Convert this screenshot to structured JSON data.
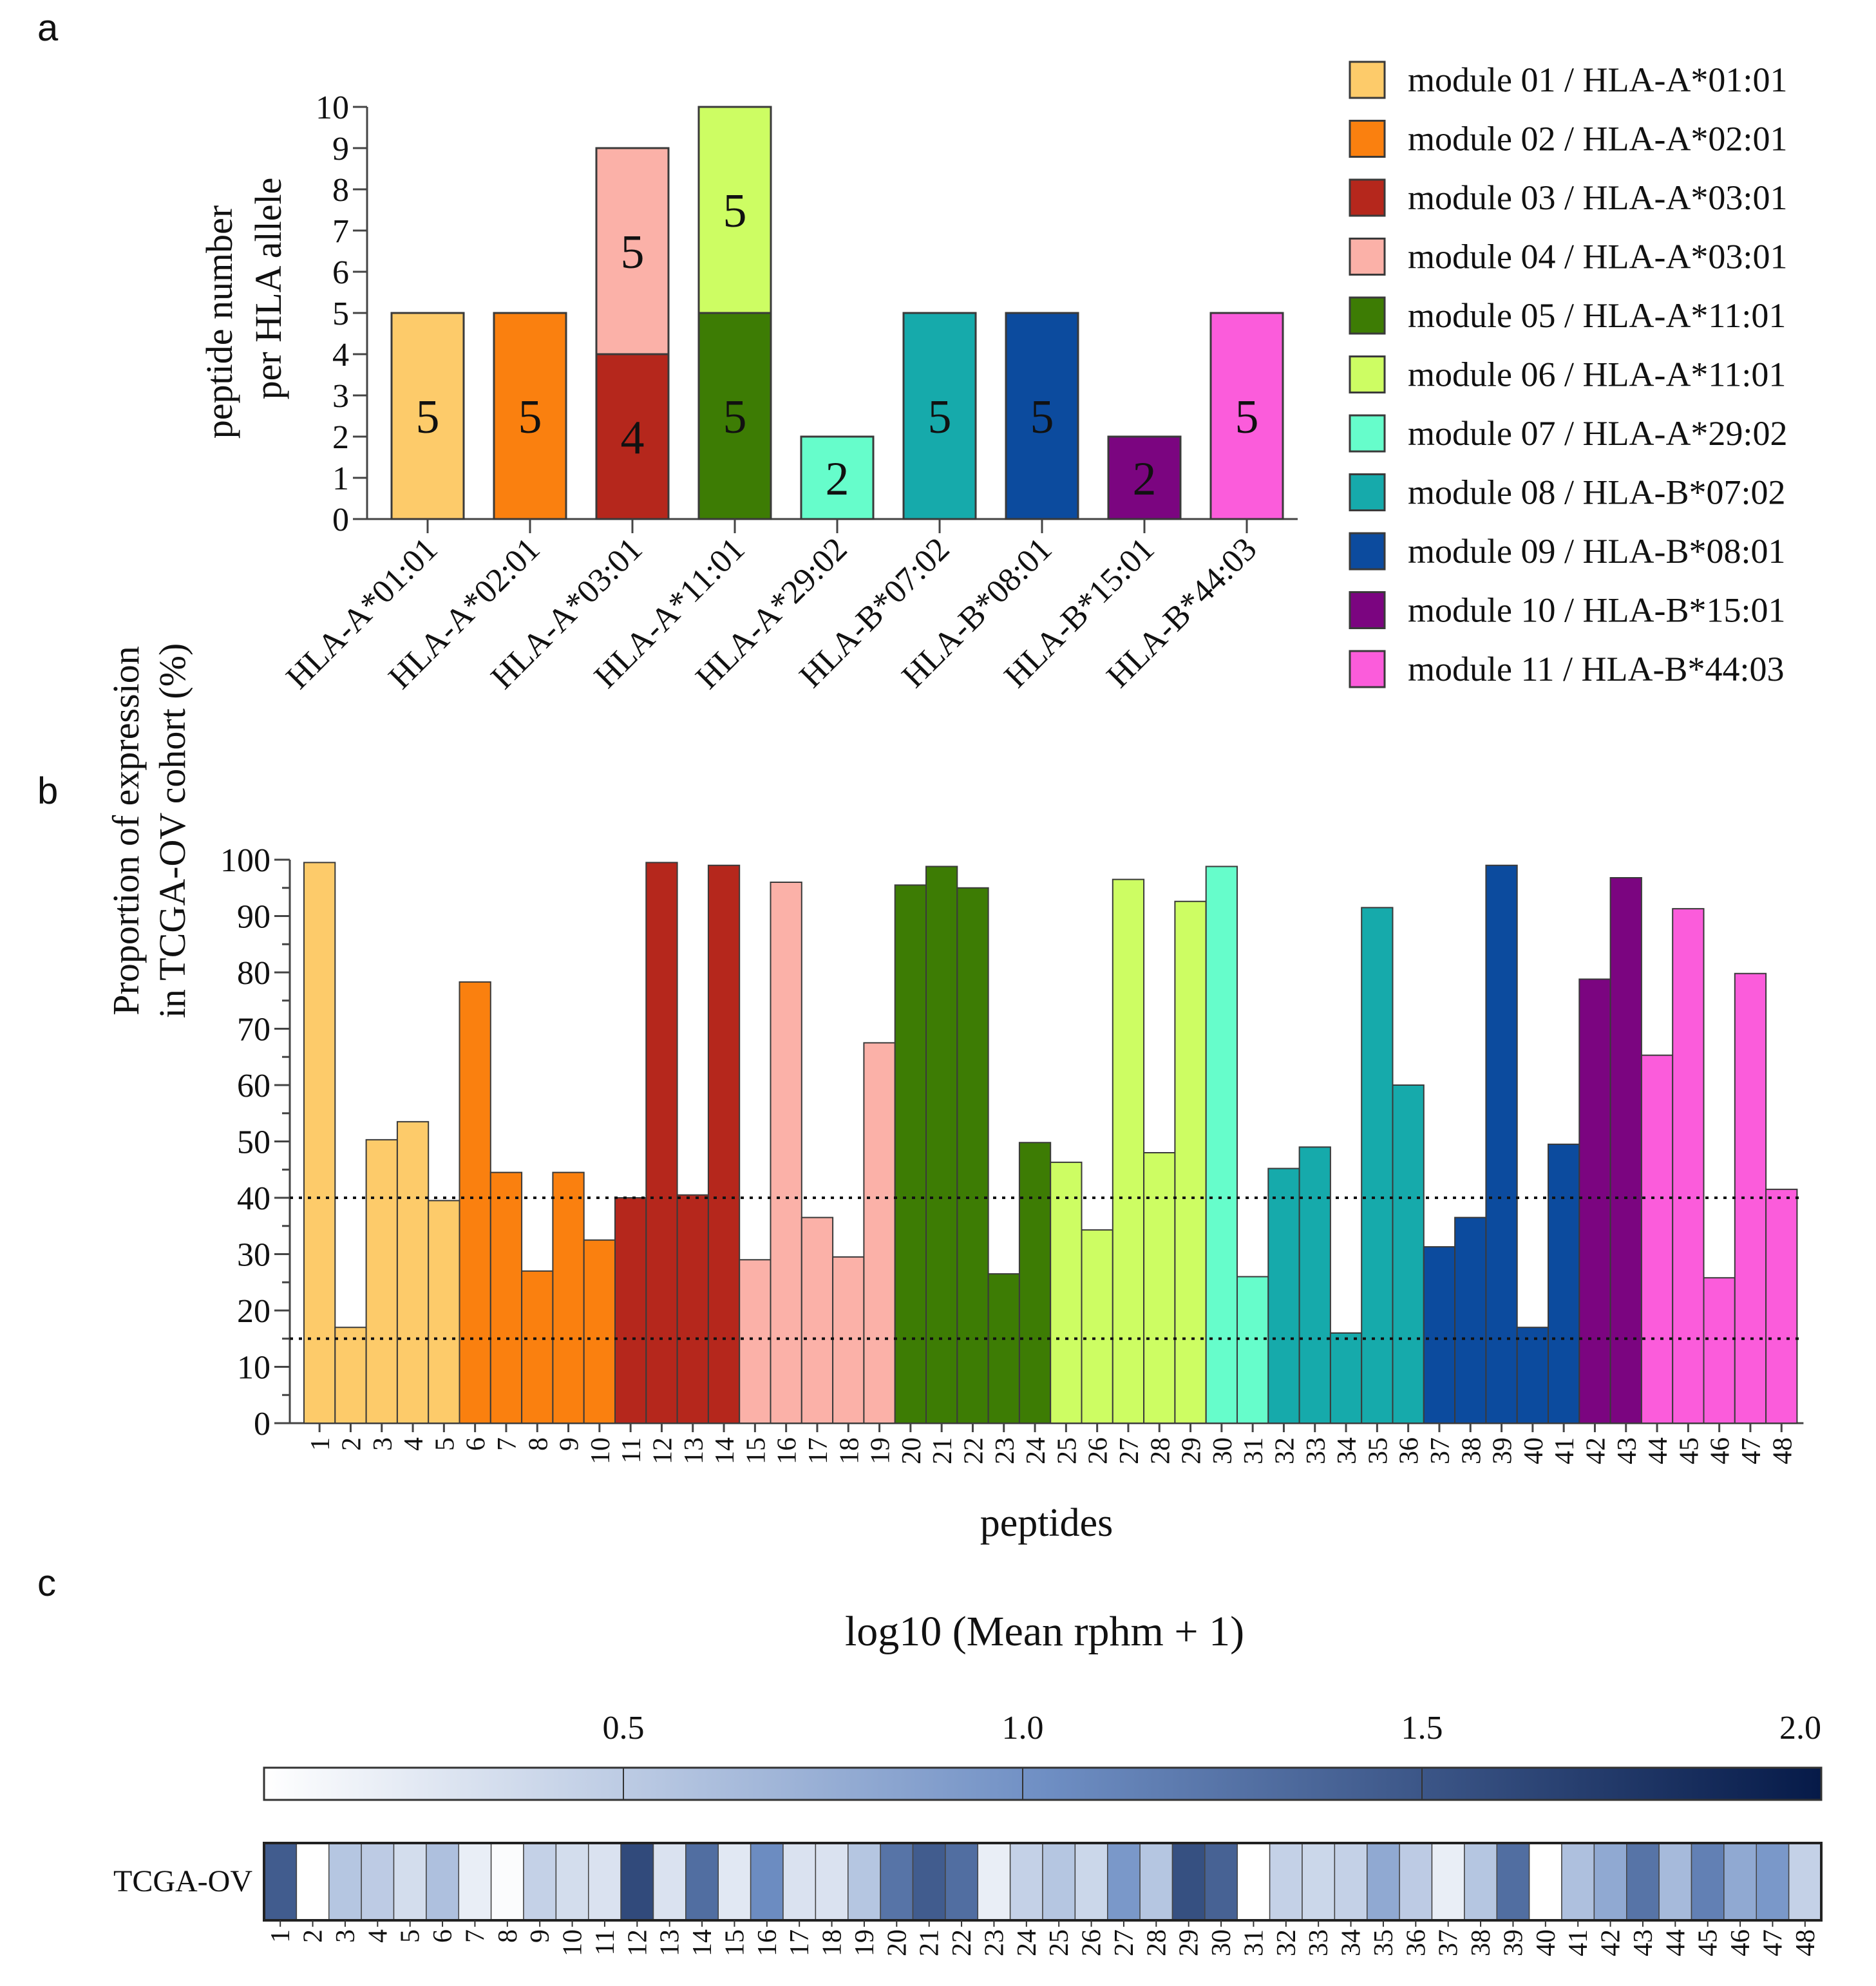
{
  "panels": {
    "a": "a",
    "b": "b",
    "c": "c"
  },
  "chart_data": [
    {
      "type": "bar",
      "stacked": true,
      "panel": "a",
      "ylabel_line1": "peptide number",
      "ylabel_line2": "per HLA allele",
      "ylim": [
        0,
        10
      ],
      "yticks": [
        0,
        1,
        2,
        3,
        4,
        5,
        6,
        7,
        8,
        9,
        10
      ],
      "categories": [
        "HLA-A*01:01",
        "HLA-A*02:01",
        "HLA-A*03:01",
        "HLA-A*11:01",
        "HLA-A*29:02",
        "HLA-B*07:02",
        "HLA-B*08:01",
        "HLA-B*15:01",
        "HLA-B*44:03"
      ],
      "bars": [
        {
          "category": "HLA-A*01:01",
          "segments": [
            {
              "module": "module 01",
              "value": 5
            }
          ]
        },
        {
          "category": "HLA-A*02:01",
          "segments": [
            {
              "module": "module 02",
              "value": 5
            }
          ]
        },
        {
          "category": "HLA-A*03:01",
          "segments": [
            {
              "module": "module 03",
              "value": 4
            },
            {
              "module": "module 04",
              "value": 5
            }
          ]
        },
        {
          "category": "HLA-A*11:01",
          "segments": [
            {
              "module": "module 05",
              "value": 5
            },
            {
              "module": "module 06",
              "value": 5
            }
          ]
        },
        {
          "category": "HLA-A*29:02",
          "segments": [
            {
              "module": "module 07",
              "value": 2
            }
          ]
        },
        {
          "category": "HLA-B*07:02",
          "segments": [
            {
              "module": "module 08",
              "value": 5
            }
          ]
        },
        {
          "category": "HLA-B*08:01",
          "segments": [
            {
              "module": "module 09",
              "value": 5
            }
          ]
        },
        {
          "category": "HLA-B*15:01",
          "segments": [
            {
              "module": "module 10",
              "value": 2
            }
          ]
        },
        {
          "category": "HLA-B*44:03",
          "segments": [
            {
              "module": "module 11",
              "value": 5
            }
          ]
        }
      ],
      "legend": [
        {
          "module": "module 01",
          "label": "module 01 / HLA-A*01:01",
          "color": "#FDCB6A"
        },
        {
          "module": "module 02",
          "label": "module 02 / HLA-A*02:01",
          "color": "#FA800F"
        },
        {
          "module": "module 03",
          "label": "module 03 / HLA-A*03:01",
          "color": "#B5271C"
        },
        {
          "module": "module 04",
          "label": "module 04 / HLA-A*03:01",
          "color": "#FBB1A8"
        },
        {
          "module": "module 05",
          "label": "module 05 / HLA-A*11:01",
          "color": "#3D7C04"
        },
        {
          "module": "module 06",
          "label": "module 06 / HLA-A*11:01",
          "color": "#CDFD63"
        },
        {
          "module": "module 07",
          "label": "module 07 / HLA-A*29:02",
          "color": "#66FDCB"
        },
        {
          "module": "module 08",
          "label": "module 08 / HLA-B*07:02",
          "color": "#16AAAB"
        },
        {
          "module": "module 09",
          "label": "module 09 / HLA-B*08:01",
          "color": "#0C4B9E"
        },
        {
          "module": "module 10",
          "label": "module 10 / HLA-B*15:01",
          "color": "#7B0580"
        },
        {
          "module": "module 11",
          "label": "module 11 / HLA-B*44:03",
          "color": "#FB5CDB"
        }
      ],
      "legend_position": "right"
    },
    {
      "type": "bar",
      "panel": "b",
      "ylabel_line1": "Proportion of expression",
      "ylabel_line2": "in TCGA-OV cohort (%)",
      "xlabel": "peptides",
      "ylim": [
        0,
        100
      ],
      "yticks": [
        0,
        10,
        20,
        30,
        40,
        50,
        60,
        70,
        80,
        90,
        100
      ],
      "reference_lines": [
        40,
        15
      ],
      "categories": [
        "1",
        "2",
        "3",
        "4",
        "5",
        "6",
        "7",
        "8",
        "9",
        "10",
        "11",
        "12",
        "13",
        "14",
        "15",
        "16",
        "17",
        "18",
        "19",
        "20",
        "21",
        "22",
        "23",
        "24",
        "25",
        "26",
        "27",
        "28",
        "29",
        "30",
        "31",
        "32",
        "33",
        "34",
        "35",
        "36",
        "37",
        "38",
        "39",
        "40",
        "41",
        "42",
        "43",
        "44",
        "45",
        "46",
        "47",
        "48"
      ],
      "values": [
        99.5,
        17,
        50.3,
        53.5,
        39.5,
        78.3,
        44.5,
        27,
        44.5,
        32.5,
        40,
        99.5,
        40.5,
        99,
        29,
        96,
        36.5,
        29.5,
        67.5,
        95.5,
        98.8,
        95,
        26.5,
        49.8,
        46.3,
        34.3,
        96.5,
        48,
        92.6,
        98.8,
        26,
        45.2,
        49,
        16,
        91.5,
        60,
        31.3,
        36.5,
        99,
        17,
        49.5,
        78.8,
        96.8,
        65.3,
        91.3,
        25.8,
        79.8,
        41.5
      ],
      "modules": [
        "module 01",
        "module 01",
        "module 01",
        "module 01",
        "module 01",
        "module 02",
        "module 02",
        "module 02",
        "module 02",
        "module 02",
        "module 03",
        "module 03",
        "module 03",
        "module 03",
        "module 04",
        "module 04",
        "module 04",
        "module 04",
        "module 04",
        "module 05",
        "module 05",
        "module 05",
        "module 05",
        "module 05",
        "module 06",
        "module 06",
        "module 06",
        "module 06",
        "module 06",
        "module 07",
        "module 07",
        "module 08",
        "module 08",
        "module 08",
        "module 08",
        "module 08",
        "module 09",
        "module 09",
        "module 09",
        "module 09",
        "module 09",
        "module 10",
        "module 10",
        "module 11",
        "module 11",
        "module 11",
        "module 11",
        "module 11"
      ]
    },
    {
      "type": "heatmap",
      "panel": "c",
      "title": "log10 (Mean rphm + 1)",
      "row_label": "TCGA-OV",
      "colorbar_ticks": [
        "0.5",
        "1.0",
        "1.5",
        "2.0"
      ],
      "colorbar_tick_values": [
        0.5,
        1.0,
        1.5,
        2.0
      ],
      "colorbar_range": [
        0.05,
        2.0
      ],
      "color_low": "#FFFFFF",
      "color_mid": "#6F8FC4",
      "color_high": "#061A48",
      "categories": [
        "1",
        "2",
        "3",
        "4",
        "5",
        "6",
        "7",
        "8",
        "9",
        "10",
        "11",
        "12",
        "13",
        "14",
        "15",
        "16",
        "17",
        "18",
        "19",
        "20",
        "21",
        "22",
        "23",
        "24",
        "25",
        "26",
        "27",
        "28",
        "29",
        "30",
        "31",
        "32",
        "33",
        "34",
        "35",
        "36",
        "37",
        "38",
        "39",
        "40",
        "41",
        "42",
        "43",
        "44",
        "45",
        "46",
        "47",
        "48"
      ],
      "values": [
        1.45,
        0.02,
        0.55,
        0.5,
        0.35,
        0.6,
        0.2,
        0.08,
        0.45,
        0.35,
        0.3,
        1.6,
        0.3,
        1.3,
        0.25,
        1.05,
        0.3,
        0.3,
        0.55,
        1.25,
        1.45,
        1.3,
        0.2,
        0.45,
        0.55,
        0.4,
        0.95,
        0.55,
        1.55,
        1.4,
        0.05,
        0.45,
        0.4,
        0.45,
        0.8,
        0.5,
        0.2,
        0.55,
        1.3,
        0.05,
        0.6,
        0.8,
        1.25,
        0.65,
        1.15,
        0.8,
        0.95,
        0.45
      ]
    }
  ]
}
